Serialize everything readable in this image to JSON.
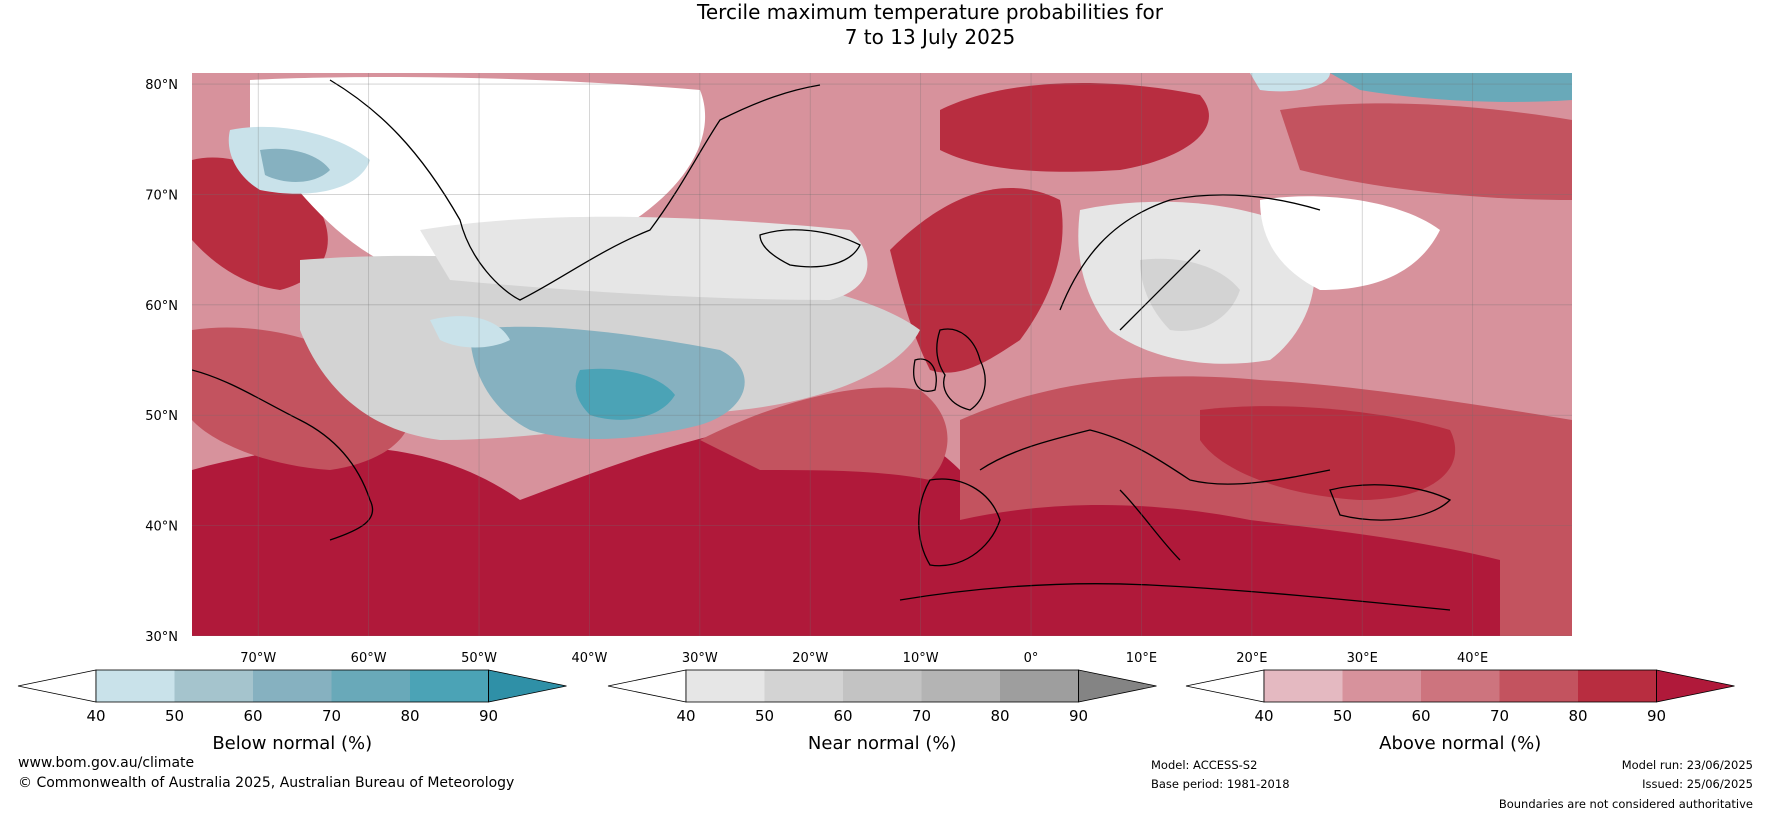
{
  "title": {
    "line1": "Tercile maximum temperature probabilities for",
    "line2": "7 to 13 July 2025"
  },
  "axes": {
    "lat_labels": [
      "80°N",
      "70°N",
      "60°N",
      "50°N",
      "40°N",
      "30°N"
    ],
    "lon_labels": [
      "70°W",
      "60°W",
      "50°W",
      "40°W",
      "30°W",
      "20°W",
      "10°W",
      "0°",
      "10°E",
      "20°E",
      "30°E",
      "40°E"
    ],
    "lat_range": [
      30,
      81
    ],
    "lon_range": [
      -76,
      49
    ]
  },
  "colors": {
    "below": [
      "#ffffff",
      "#c9e2ea",
      "#a5c4cd",
      "#86b1c0",
      "#69a9b9",
      "#4ba3b6",
      "#2f90a7"
    ],
    "near": [
      "#ffffff",
      "#e6e6e6",
      "#d3d3d3",
      "#c3c3c3",
      "#b4b4b4",
      "#9e9e9e",
      "#848484"
    ],
    "above": [
      "#ffffff",
      "#e4b9c1",
      "#d7929c",
      "#cd747e",
      "#c3535f",
      "#b82d40",
      "#b0193a"
    ]
  },
  "legends": [
    {
      "id": "below",
      "title": "Below normal (%)",
      "ticks": [
        "40",
        "50",
        "60",
        "70",
        "80",
        "90"
      ]
    },
    {
      "id": "near",
      "title": "Near normal (%)",
      "ticks": [
        "40",
        "50",
        "60",
        "70",
        "80",
        "90"
      ]
    },
    {
      "id": "above",
      "title": "Above normal (%)",
      "ticks": [
        "40",
        "50",
        "60",
        "70",
        "80",
        "90"
      ]
    }
  ],
  "footer": {
    "website": "www.bom.gov.au/climate",
    "copyright": "© Commonwealth of Australia 2025, Australian Bureau of Meteorology",
    "model": "Model: ACCESS-S2",
    "base_period": "Base period: 1981-2018",
    "model_run": "Model run: 23/06/2025",
    "issued": "Issued: 25/06/2025",
    "disclaimer": "Boundaries are not considered authoritative"
  }
}
